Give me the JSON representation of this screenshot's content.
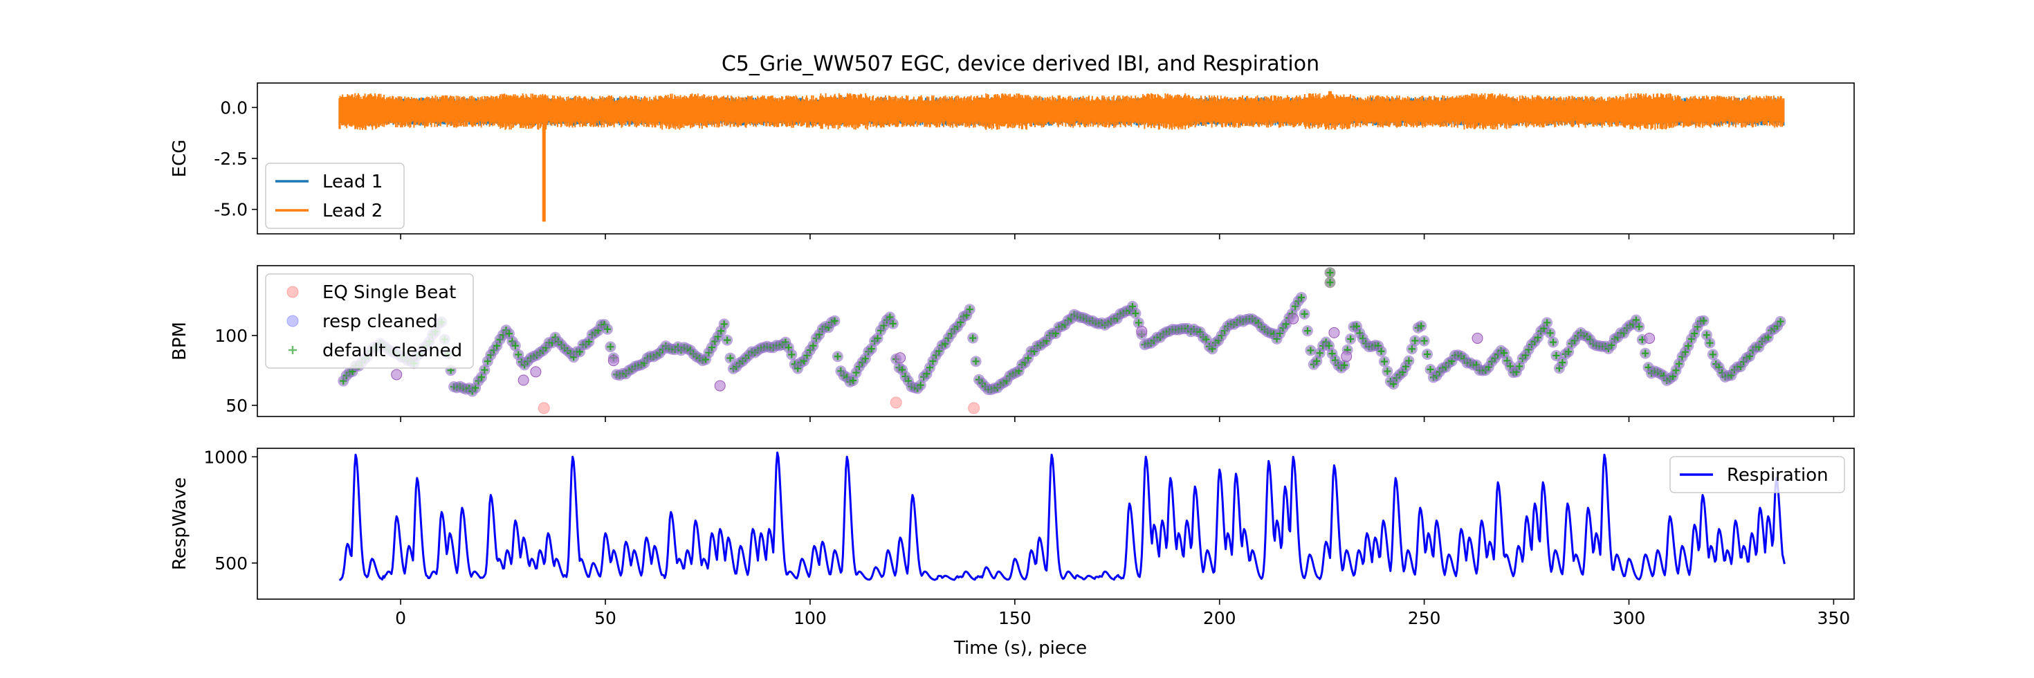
{
  "figure": {
    "title": "C5_Grie_WW507 EGC, device derived IBI, and Respiration",
    "xlabel": "Time (s), piece"
  },
  "chart_data": [
    {
      "type": "line",
      "panel": "ecg",
      "ylabel": "ECG",
      "xlim": [
        -35,
        355
      ],
      "ylim": [
        -6.2,
        1.2
      ],
      "x_ticks": [
        "0",
        "50",
        "100",
        "150",
        "200",
        "250",
        "300",
        "350"
      ],
      "y_ticks": [
        "0.0",
        "-2.5",
        "-5.0"
      ],
      "y_tick_values": [
        0.0,
        -2.5,
        -5.0
      ],
      "x_range": [
        -15,
        338
      ],
      "legend": {
        "placement": "lower-left"
      },
      "series": [
        {
          "name": "Lead 1",
          "color": "#1f77b4",
          "band": [
            -0.9,
            0.5
          ]
        },
        {
          "name": "Lead 2",
          "color": "#ff7f0e",
          "band": [
            -1.0,
            0.6
          ],
          "spikes": [
            {
              "x": 35,
              "y": -5.6
            },
            {
              "x": 227,
              "y": 0.8
            }
          ]
        }
      ]
    },
    {
      "type": "scatter",
      "panel": "ibi",
      "ylabel": "BPM",
      "xlim": [
        -35,
        355
      ],
      "ylim": [
        42,
        150
      ],
      "x_ticks": [
        "0",
        "50",
        "100",
        "150",
        "200",
        "250",
        "300",
        "350"
      ],
      "y_ticks": [
        "100",
        "50"
      ],
      "y_tick_values": [
        100,
        50
      ],
      "legend": {
        "placement": "upper-left"
      },
      "series": [
        {
          "name": "EQ Single Beat",
          "color": "#ff7f7f",
          "marker": "circle"
        },
        {
          "name": "resp cleaned",
          "color": "#7f7fff",
          "marker": "circle"
        },
        {
          "name": "default cleaned",
          "color": "#2ca02c",
          "marker": "plus"
        }
      ],
      "trend_knots": [
        [
          -14,
          68
        ],
        [
          -5,
          95
        ],
        [
          3,
          80
        ],
        [
          10,
          110
        ],
        [
          13,
          64
        ],
        [
          18,
          60
        ],
        [
          22,
          86
        ],
        [
          26,
          105
        ],
        [
          30,
          78
        ],
        [
          38,
          98
        ],
        [
          42,
          84
        ],
        [
          50,
          110
        ],
        [
          53,
          70
        ],
        [
          58,
          78
        ],
        [
          65,
          92
        ],
        [
          70,
          90
        ],
        [
          74,
          80
        ],
        [
          79,
          108
        ],
        [
          81,
          76
        ],
        [
          86,
          88
        ],
        [
          94,
          95
        ],
        [
          97,
          76
        ],
        [
          103,
          104
        ],
        [
          106,
          110
        ],
        [
          107,
          76
        ],
        [
          110,
          66
        ],
        [
          120,
          117
        ],
        [
          121,
          82
        ],
        [
          124,
          66
        ],
        [
          126,
          60
        ],
        [
          131,
          88
        ],
        [
          139,
          118
        ],
        [
          141,
          68
        ],
        [
          144,
          60
        ],
        [
          150,
          72
        ],
        [
          154,
          88
        ],
        [
          165,
          115
        ],
        [
          172,
          108
        ],
        [
          179,
          120
        ],
        [
          182,
          92
        ],
        [
          188,
          105
        ],
        [
          195,
          104
        ],
        [
          198,
          90
        ],
        [
          202,
          108
        ],
        [
          208,
          113
        ],
        [
          214,
          98
        ],
        [
          220,
          128
        ],
        [
          223,
          78
        ],
        [
          226,
          96
        ],
        [
          230,
          74
        ],
        [
          233,
          110
        ],
        [
          236,
          93
        ],
        [
          239,
          92
        ],
        [
          242,
          64
        ],
        [
          246,
          80
        ],
        [
          249,
          110
        ],
        [
          252,
          70
        ],
        [
          258,
          86
        ],
        [
          265,
          74
        ],
        [
          269,
          90
        ],
        [
          272,
          73
        ],
        [
          280,
          110
        ],
        [
          283,
          78
        ],
        [
          288,
          103
        ],
        [
          292,
          92
        ],
        [
          295,
          92
        ],
        [
          302,
          112
        ],
        [
          305,
          75
        ],
        [
          310,
          68
        ],
        [
          318,
          112
        ],
        [
          321,
          80
        ],
        [
          324,
          70
        ],
        [
          329,
          84
        ],
        [
          337,
          110
        ]
      ],
      "outliers": [
        {
          "x": 35,
          "y": 48,
          "series": "EQ Single Beat"
        },
        {
          "x": 121,
          "y": 52,
          "series": "EQ Single Beat"
        },
        {
          "x": 140,
          "y": 48,
          "series": "EQ Single Beat"
        },
        {
          "x": 227,
          "y": 145,
          "series": "default cleaned"
        },
        {
          "x": 227,
          "y": 138,
          "series": "default cleaned"
        },
        {
          "x": 218,
          "y": 112,
          "series": "resp cleaned"
        },
        {
          "x": 228,
          "y": 102,
          "series": "resp cleaned"
        },
        {
          "x": 231,
          "y": 85,
          "series": "resp cleaned"
        },
        {
          "x": 78,
          "y": 64,
          "series": "resp cleaned"
        },
        {
          "x": 52,
          "y": 82,
          "series": "resp cleaned"
        },
        {
          "x": 122,
          "y": 84,
          "series": "resp cleaned"
        },
        {
          "x": 181,
          "y": 103,
          "series": "resp cleaned"
        },
        {
          "x": 305,
          "y": 98,
          "series": "resp cleaned"
        },
        {
          "x": 263,
          "y": 98,
          "series": "resp cleaned"
        },
        {
          "x": -1,
          "y": 72,
          "series": "resp cleaned"
        },
        {
          "x": 30,
          "y": 68,
          "series": "resp cleaned"
        },
        {
          "x": 33,
          "y": 74,
          "series": "resp cleaned"
        }
      ]
    },
    {
      "type": "line",
      "panel": "resp",
      "ylabel": "RespWave",
      "xlim": [
        -35,
        355
      ],
      "ylim": [
        330,
        1040
      ],
      "x_ticks": [
        "0",
        "50",
        "100",
        "150",
        "200",
        "250",
        "300",
        "350"
      ],
      "y_ticks": [
        "1000",
        "500"
      ],
      "y_tick_values": [
        1000,
        500
      ],
      "legend": {
        "placement": "upper-right"
      },
      "series": [
        {
          "name": "Respiration",
          "color": "#0000ff",
          "x_range": [
            -15,
            338
          ],
          "baseline": 420,
          "peaks": [
            [
              -13,
              590
            ],
            [
              -11,
              1010
            ],
            [
              -7,
              520
            ],
            [
              -3,
              460
            ],
            [
              -1,
              720
            ],
            [
              2,
              580
            ],
            [
              4,
              900
            ],
            [
              8,
              460
            ],
            [
              10,
              740
            ],
            [
              12,
              640
            ],
            [
              15,
              760
            ],
            [
              18,
              460
            ],
            [
              22,
              820
            ],
            [
              24,
              520
            ],
            [
              26,
              560
            ],
            [
              28,
              700
            ],
            [
              30,
              620
            ],
            [
              32,
              520
            ],
            [
              34,
              560
            ],
            [
              36,
              640
            ],
            [
              38,
              520
            ],
            [
              42,
              1000
            ],
            [
              44,
              520
            ],
            [
              47,
              500
            ],
            [
              50,
              640
            ],
            [
              52,
              560
            ],
            [
              55,
              600
            ],
            [
              57,
              560
            ],
            [
              60,
              620
            ],
            [
              62,
              580
            ],
            [
              66,
              740
            ],
            [
              68,
              520
            ],
            [
              70,
              560
            ],
            [
              72,
              700
            ],
            [
              74,
              520
            ],
            [
              76,
              640
            ],
            [
              78,
              660
            ],
            [
              80,
              620
            ],
            [
              83,
              580
            ],
            [
              86,
              660
            ],
            [
              88,
              640
            ],
            [
              90,
              660
            ],
            [
              92,
              1020
            ],
            [
              95,
              460
            ],
            [
              98,
              520
            ],
            [
              101,
              580
            ],
            [
              103,
              600
            ],
            [
              106,
              560
            ],
            [
              109,
              1000
            ],
            [
              112,
              460
            ],
            [
              116,
              480
            ],
            [
              119,
              560
            ],
            [
              122,
              620
            ],
            [
              125,
              820
            ],
            [
              128,
              460
            ],
            [
              133,
              440
            ],
            [
              138,
              460
            ],
            [
              143,
              480
            ],
            [
              146,
              460
            ],
            [
              150,
              520
            ],
            [
              154,
              560
            ],
            [
              156,
              620
            ],
            [
              159,
              1010
            ],
            [
              163,
              460
            ],
            [
              168,
              440
            ],
            [
              172,
              460
            ],
            [
              178,
              780
            ],
            [
              182,
              1000
            ],
            [
              184,
              680
            ],
            [
              186,
              700
            ],
            [
              188,
              900
            ],
            [
              190,
              640
            ],
            [
              192,
              700
            ],
            [
              194,
              860
            ],
            [
              197,
              560
            ],
            [
              200,
              940
            ],
            [
              202,
              640
            ],
            [
              204,
              920
            ],
            [
              206,
              660
            ],
            [
              208,
              560
            ],
            [
              212,
              980
            ],
            [
              214,
              700
            ],
            [
              216,
              860
            ],
            [
              218,
              1000
            ],
            [
              222,
              540
            ],
            [
              226,
              600
            ],
            [
              228,
              960
            ],
            [
              231,
              560
            ],
            [
              234,
              560
            ],
            [
              236,
              640
            ],
            [
              238,
              620
            ],
            [
              240,
              700
            ],
            [
              243,
              900
            ],
            [
              246,
              560
            ],
            [
              249,
              760
            ],
            [
              251,
              640
            ],
            [
              253,
              700
            ],
            [
              256,
              540
            ],
            [
              259,
              660
            ],
            [
              261,
              620
            ],
            [
              264,
              700
            ],
            [
              266,
              600
            ],
            [
              268,
              880
            ],
            [
              270,
              540
            ],
            [
              273,
              580
            ],
            [
              275,
              720
            ],
            [
              277,
              780
            ],
            [
              279,
              880
            ],
            [
              282,
              560
            ],
            [
              285,
              780
            ],
            [
              287,
              540
            ],
            [
              290,
              760
            ],
            [
              292,
              640
            ],
            [
              294,
              1010
            ],
            [
              297,
              540
            ],
            [
              300,
              520
            ],
            [
              304,
              540
            ],
            [
              307,
              560
            ],
            [
              310,
              720
            ],
            [
              313,
              580
            ],
            [
              316,
              680
            ],
            [
              318,
              820
            ],
            [
              320,
              580
            ],
            [
              322,
              660
            ],
            [
              324,
              560
            ],
            [
              326,
              700
            ],
            [
              328,
              580
            ],
            [
              330,
              640
            ],
            [
              332,
              760
            ],
            [
              334,
              720
            ],
            [
              336,
              900
            ],
            [
              337,
              560
            ]
          ]
        }
      ]
    }
  ]
}
